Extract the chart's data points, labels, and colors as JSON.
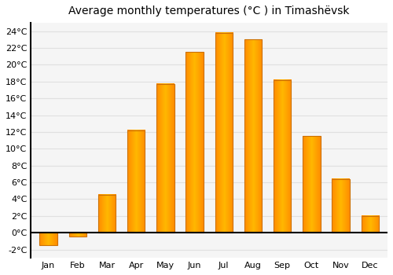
{
  "title": "Average monthly temperatures (°C ) in Timashëvsk",
  "months": [
    "Jan",
    "Feb",
    "Mar",
    "Apr",
    "May",
    "Jun",
    "Jul",
    "Aug",
    "Sep",
    "Oct",
    "Nov",
    "Dec"
  ],
  "values": [
    -1.5,
    -0.5,
    4.5,
    12.2,
    17.7,
    21.5,
    23.8,
    23.0,
    18.2,
    11.5,
    6.4,
    2.0
  ],
  "bar_color_light": "#FFB800",
  "bar_color_dark": "#FF8C00",
  "bar_edge_color": "#CC7000",
  "ylim": [
    -3,
    25
  ],
  "yticks": [
    -2,
    0,
    2,
    4,
    6,
    8,
    10,
    12,
    14,
    16,
    18,
    20,
    22,
    24
  ],
  "bg_color": "#FFFFFF",
  "plot_bg_color": "#F5F5F5",
  "grid_color": "#E0E0E0",
  "title_fontsize": 10,
  "tick_fontsize": 8,
  "bar_width": 0.6
}
